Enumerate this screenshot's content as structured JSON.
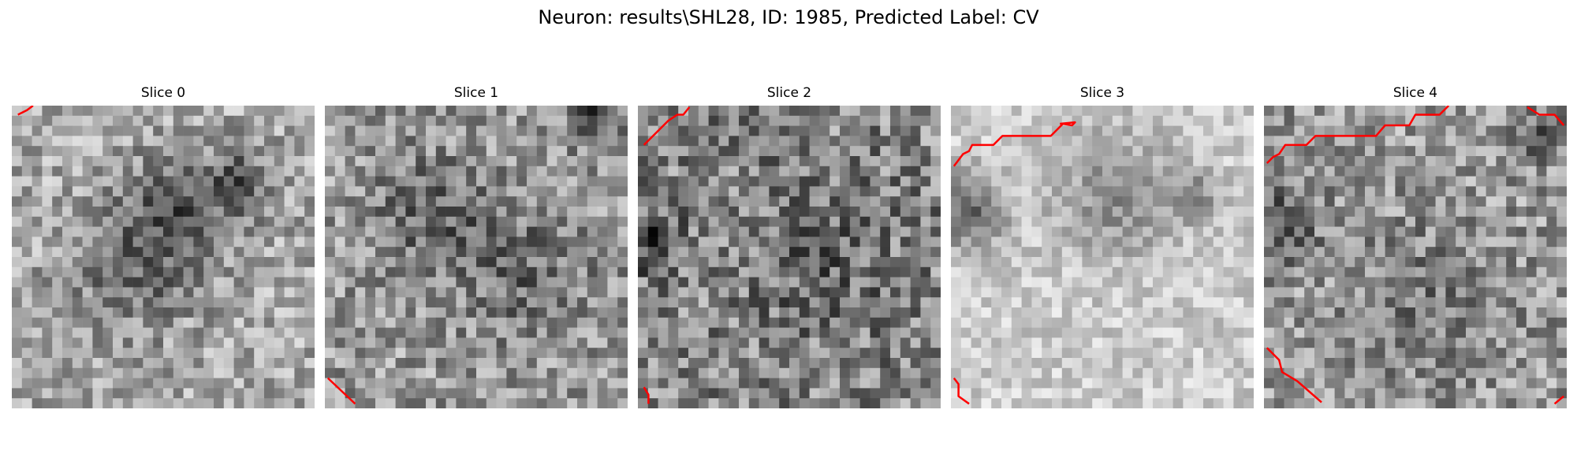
{
  "figure": {
    "title": "Neuron: results\\SHL28, ID: 1985, Predicted Label: CV"
  },
  "panels": [
    {
      "title": "Slice 0",
      "contour_color": "#ff0000"
    },
    {
      "title": "Slice 1",
      "contour_color": "#ff0000"
    },
    {
      "title": "Slice 2",
      "contour_color": "#ff0000"
    },
    {
      "title": "Slice 3",
      "contour_color": "#ff0000"
    },
    {
      "title": "Slice 4",
      "contour_color": "#ff0000"
    }
  ],
  "grid_cells": 30,
  "colormap": "gray"
}
